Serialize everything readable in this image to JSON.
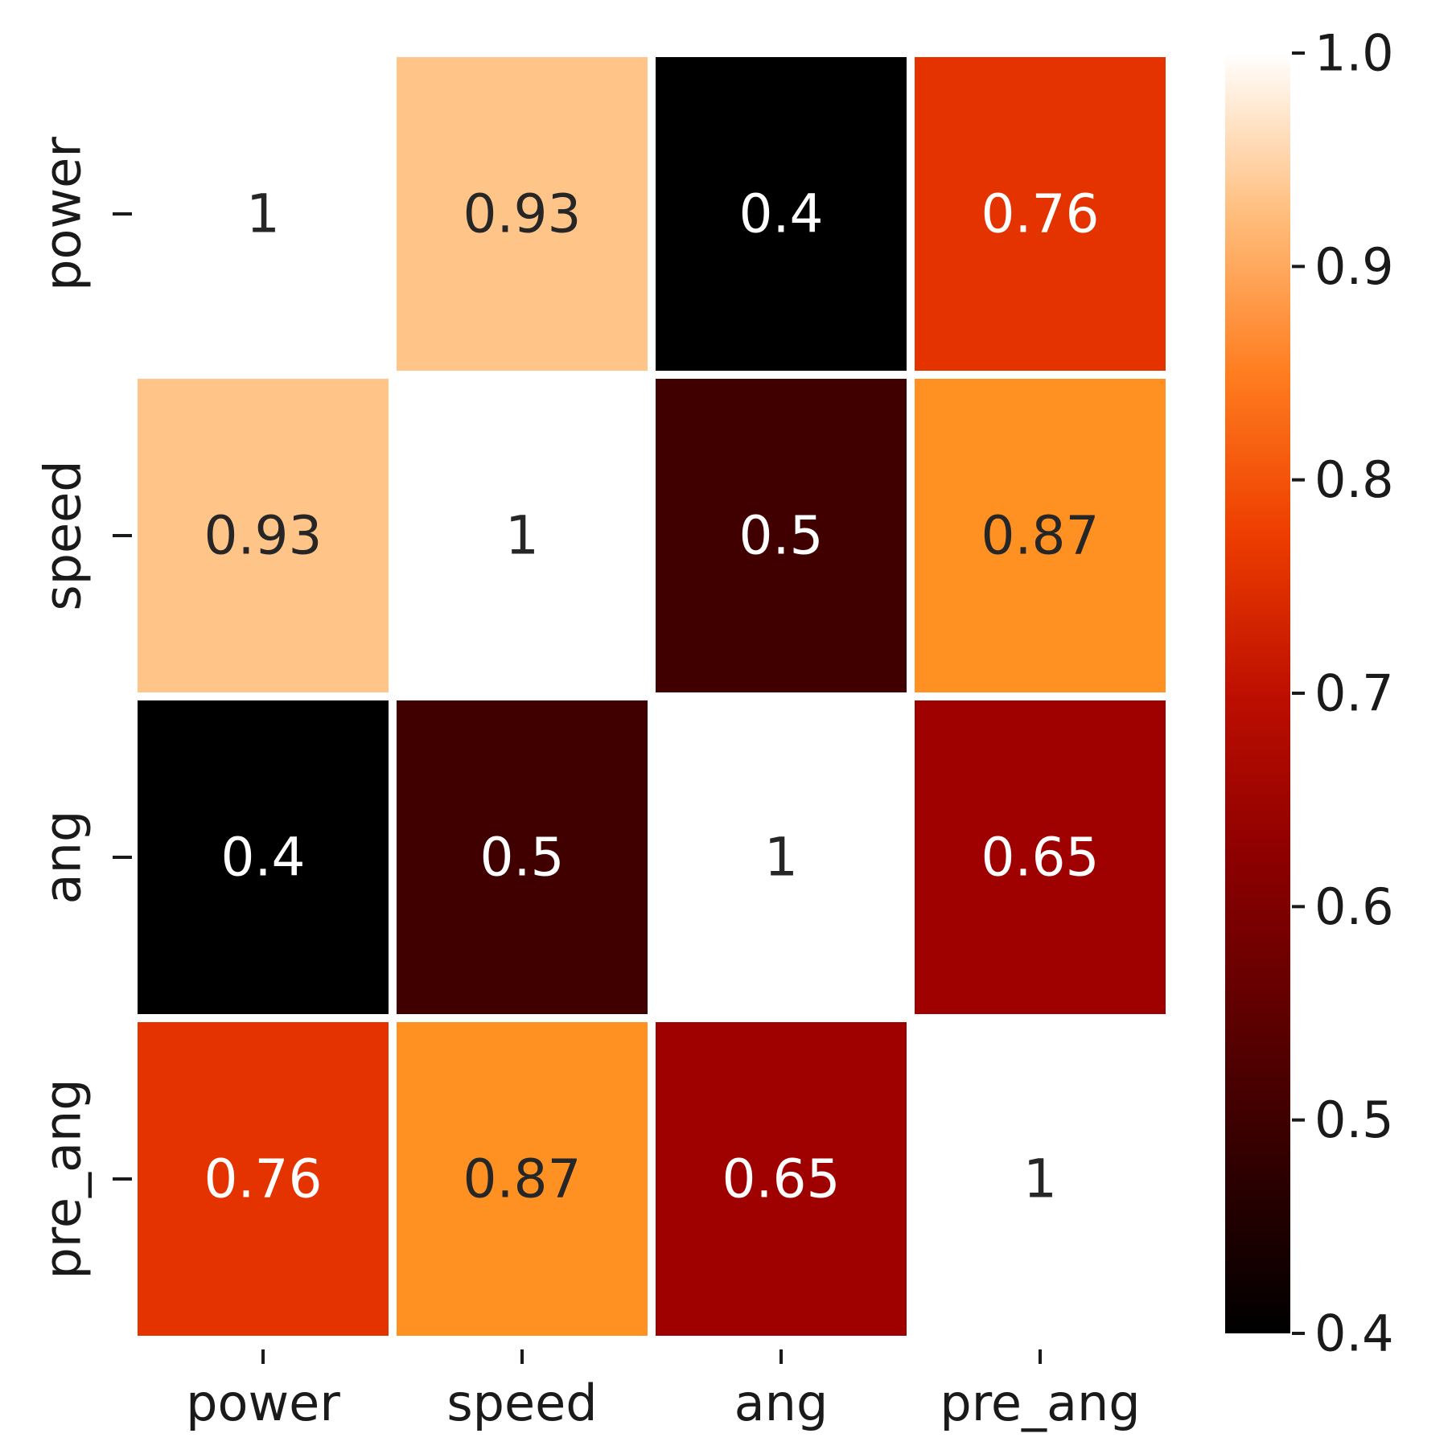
{
  "chart_data": {
    "type": "heatmap",
    "x_labels": [
      "power",
      "speed",
      "ang",
      "pre_ang"
    ],
    "y_labels": [
      "power",
      "speed",
      "ang",
      "pre_ang"
    ],
    "matrix": [
      [
        1.0,
        0.93,
        0.4,
        0.76
      ],
      [
        0.93,
        1.0,
        0.5,
        0.87
      ],
      [
        0.4,
        0.5,
        1.0,
        0.65
      ],
      [
        0.76,
        0.87,
        0.65,
        1.0
      ]
    ],
    "annotations": [
      [
        "1",
        "0.93",
        "0.4",
        "0.76"
      ],
      [
        "0.93",
        "1",
        "0.5",
        "0.87"
      ],
      [
        "0.4",
        "0.5",
        "1",
        "0.65"
      ],
      [
        "0.76",
        "0.87",
        "0.65",
        "1"
      ]
    ],
    "colorbar": {
      "min": 0.4,
      "max": 1.0,
      "ticks": [
        0.4,
        0.5,
        0.6,
        0.7,
        0.8,
        0.9,
        1.0
      ],
      "tick_labels": [
        "0.4",
        "0.5",
        "0.6",
        "0.7",
        "0.8",
        "0.9",
        "1.0"
      ],
      "colormap": "gist_heat",
      "placement": "right"
    },
    "title": "",
    "xlabel": "",
    "ylabel": ""
  }
}
